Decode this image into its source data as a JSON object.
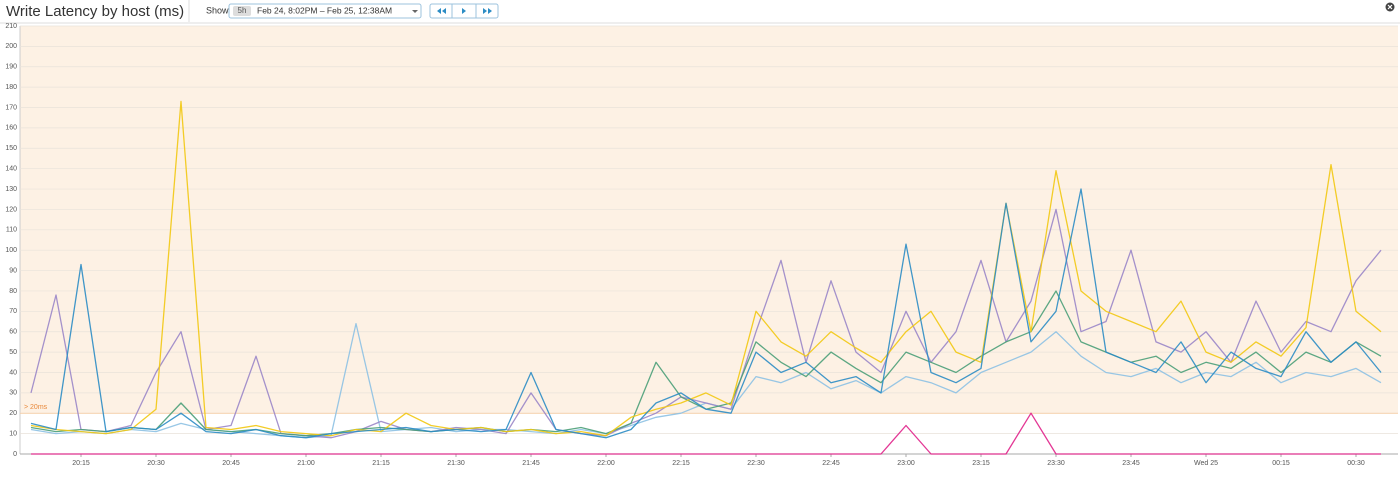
{
  "chart_data": {
    "type": "line",
    "title": "Write Latency by host (ms)",
    "show_label": "Show",
    "range_button": "5h",
    "time_range": "Feb 24, 8:02PM – Feb 25, 12:38AM",
    "x": [
      "20:05",
      "20:10",
      "20:15",
      "20:20",
      "20:25",
      "20:30",
      "20:35",
      "20:40",
      "20:45",
      "20:50",
      "20:55",
      "21:00",
      "21:05",
      "21:10",
      "21:15",
      "21:20",
      "21:25",
      "21:30",
      "21:35",
      "21:40",
      "21:45",
      "21:50",
      "21:55",
      "22:00",
      "22:05",
      "22:10",
      "22:15",
      "22:20",
      "22:25",
      "22:30",
      "22:35",
      "22:40",
      "22:45",
      "22:50",
      "22:55",
      "23:00",
      "23:05",
      "23:10",
      "23:15",
      "23:20",
      "23:25",
      "23:30",
      "23:35",
      "23:40",
      "23:45",
      "23:50",
      "23:55",
      "Wed 25",
      "00:05",
      "00:10",
      "00:15",
      "00:20",
      "00:25",
      "00:30",
      "00:35"
    ],
    "xticks": [
      "20:15",
      "20:30",
      "20:45",
      "21:00",
      "21:15",
      "21:30",
      "21:45",
      "22:00",
      "22:15",
      "22:30",
      "22:45",
      "23:00",
      "23:15",
      "23:30",
      "23:45",
      "Wed 25",
      "00:15",
      "00:30"
    ],
    "ylim": [
      0,
      210
    ],
    "yticks": [
      0,
      10,
      20,
      30,
      40,
      50,
      60,
      70,
      80,
      90,
      100,
      110,
      120,
      130,
      140,
      150,
      160,
      170,
      180,
      190,
      200,
      210
    ],
    "grid": true,
    "threshold": {
      "value": 20,
      "label": "> 20ms",
      "color": "#fdf1e4"
    },
    "series": [
      {
        "color": "#8dc1e3",
        "values": [
          12,
          10,
          11,
          10,
          12,
          11,
          15,
          12,
          11,
          10,
          9,
          8,
          9,
          64,
          11,
          12,
          13,
          11,
          12,
          12,
          11,
          10,
          12,
          10,
          14,
          18,
          20,
          25,
          22,
          38,
          35,
          40,
          32,
          36,
          30,
          38,
          35,
          30,
          40,
          45,
          50,
          60,
          48,
          40,
          38,
          42,
          35,
          40,
          38,
          45,
          35,
          40,
          38,
          42,
          35
        ]
      },
      {
        "color": "#9a86c8",
        "values": [
          30,
          78,
          12,
          11,
          14,
          40,
          60,
          12,
          14,
          48,
          10,
          9,
          8,
          11,
          16,
          12,
          11,
          13,
          12,
          10,
          30,
          12,
          10,
          9,
          15,
          20,
          28,
          25,
          22,
          60,
          95,
          45,
          85,
          50,
          40,
          70,
          45,
          60,
          95,
          55,
          75,
          120,
          60,
          65,
          100,
          55,
          50,
          60,
          45,
          75,
          50,
          65,
          60,
          85,
          100
        ]
      },
      {
        "color": "#4a9e78",
        "values": [
          13,
          11,
          12,
          11,
          13,
          12,
          25,
          12,
          11,
          12,
          10,
          9,
          10,
          12,
          13,
          12,
          11,
          12,
          13,
          11,
          12,
          11,
          13,
          10,
          15,
          45,
          28,
          22,
          25,
          55,
          45,
          38,
          50,
          42,
          35,
          50,
          45,
          40,
          48,
          55,
          60,
          80,
          55,
          50,
          45,
          48,
          40,
          45,
          42,
          50,
          40,
          50,
          45,
          55,
          48
        ]
      },
      {
        "color": "#f2c811",
        "values": [
          14,
          12,
          11,
          10,
          12,
          22,
          173,
          13,
          12,
          14,
          11,
          10,
          9,
          12,
          11,
          20,
          14,
          12,
          13,
          11,
          12,
          10,
          11,
          9,
          18,
          22,
          25,
          30,
          24,
          70,
          55,
          48,
          60,
          52,
          45,
          60,
          70,
          50,
          45,
          123,
          60,
          139,
          80,
          70,
          65,
          60,
          75,
          50,
          45,
          55,
          48,
          62,
          142,
          70,
          60
        ]
      },
      {
        "color": "#2b8cc4",
        "values": [
          15,
          12,
          93,
          11,
          13,
          12,
          20,
          11,
          10,
          12,
          9,
          8,
          10,
          11,
          12,
          13,
          11,
          12,
          11,
          12,
          40,
          12,
          10,
          8,
          12,
          25,
          30,
          22,
          20,
          50,
          40,
          45,
          35,
          38,
          30,
          103,
          40,
          35,
          42,
          123,
          55,
          70,
          130,
          50,
          45,
          40,
          55,
          35,
          50,
          42,
          38,
          60,
          45,
          55,
          40
        ]
      },
      {
        "color": "#e0218a",
        "values": [
          0,
          0,
          0,
          0,
          0,
          0,
          0,
          0,
          0,
          0,
          0,
          0,
          0,
          0,
          0,
          0,
          0,
          0,
          0,
          0,
          0,
          0,
          0,
          0,
          0,
          0,
          0,
          0,
          0,
          0,
          0,
          0,
          0,
          0,
          0,
          14,
          0,
          0,
          0,
          0,
          20,
          0,
          0,
          0,
          0,
          0,
          0,
          0,
          0,
          0,
          0,
          0,
          0,
          0,
          0
        ]
      }
    ]
  }
}
